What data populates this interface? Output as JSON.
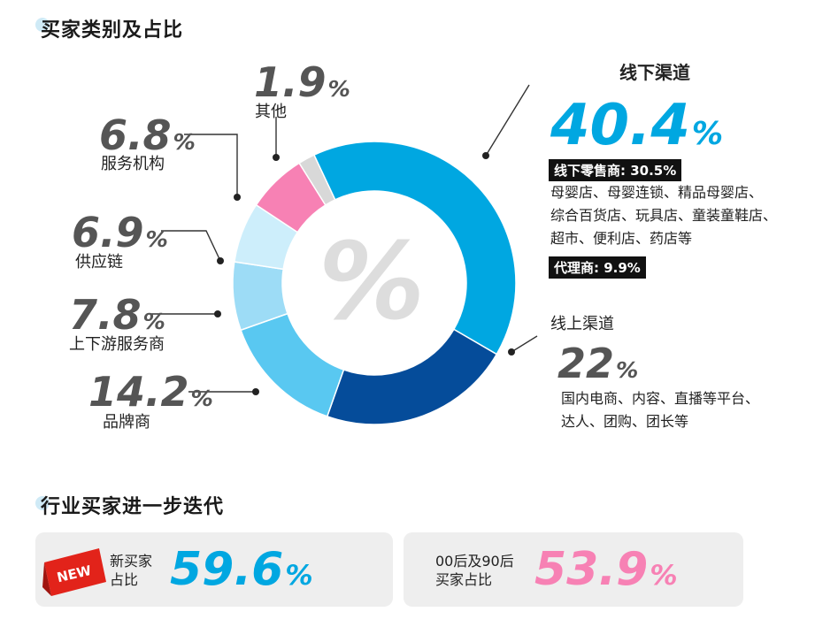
{
  "section1": {
    "title": "买家类别及占比"
  },
  "section2": {
    "title": "行业买家进一步迭代"
  },
  "center_symbol": "%",
  "chart_data": {
    "type": "pie",
    "donut": true,
    "slices": [
      {
        "label": "线下渠道",
        "value": 40.4,
        "value_text": "40.4",
        "color": "#00a7e1"
      },
      {
        "label": "线上渠道",
        "value": 22,
        "value_text": "22",
        "color": "#054c9a"
      },
      {
        "label": "品牌商",
        "value": 14.2,
        "value_text": "14.2",
        "color": "#59c8f1"
      },
      {
        "label": "上下游服务商",
        "value": 7.8,
        "value_text": "7.8",
        "color": "#9ddcf6"
      },
      {
        "label": "供应链",
        "value": 6.9,
        "value_text": "6.9",
        "color": "#cdeefb"
      },
      {
        "label": "服务机构",
        "value": 6.8,
        "value_text": "6.8",
        "color": "#f781b4"
      },
      {
        "label": "其他",
        "value": 1.9,
        "value_text": "1.9",
        "color": "#d8d8d8"
      }
    ],
    "percent_sign": "%"
  },
  "offline_detail": {
    "retail": "线下零售商: 30.5%",
    "retail_desc": [
      "母婴店、母婴连锁、精品母婴店、",
      "综合百货店、玩具店、童装童鞋店、",
      "超市、便利店、药店等"
    ],
    "agent": "代理商: 9.9%"
  },
  "online_detail": {
    "desc": [
      "国内电商、内容、直播等平台、",
      "达人、团购、团长等"
    ]
  },
  "cards": [
    {
      "label_lines": [
        "新买家",
        "占比"
      ],
      "value": "59.6",
      "badge": "NEW",
      "value_color": "#00a7e1"
    },
    {
      "label_lines": [
        "00后及90后",
        "买家占比"
      ],
      "value": "53.9",
      "value_color": "#f781b4"
    }
  ]
}
